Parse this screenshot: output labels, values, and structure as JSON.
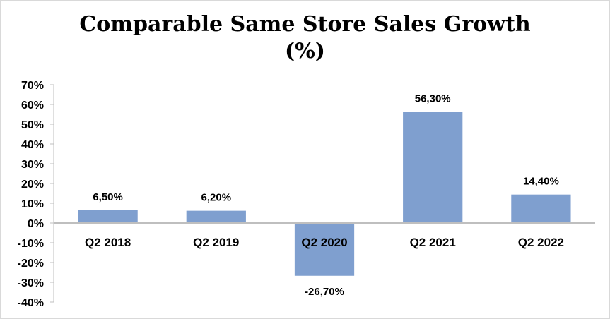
{
  "chart_data": {
    "type": "bar",
    "title_line1": "Comparable Same Store Sales Growth",
    "title_line2": "(%)",
    "categories": [
      "Q2 2018",
      "Q2 2019",
      "Q2 2020",
      "Q2 2021",
      "Q2 2022"
    ],
    "values": [
      6.5,
      6.2,
      -26.7,
      56.3,
      14.4
    ],
    "data_labels": [
      "6,50%",
      "6,20%",
      "-26,70%",
      "56,30%",
      "14,40%"
    ],
    "ylim": [
      -40,
      70
    ],
    "yticks": [
      70,
      60,
      50,
      40,
      30,
      20,
      10,
      0,
      -10,
      -20,
      -30,
      -40
    ],
    "ytick_labels": [
      "70%",
      "60%",
      "50%",
      "40%",
      "30%",
      "20%",
      "10%",
      "0%",
      "-10%",
      "-20%",
      "-30%",
      "-40%"
    ],
    "bar_color": "#7f9fcf",
    "axis_color": "#bfbfbf",
    "grid": false,
    "legend": "none"
  }
}
